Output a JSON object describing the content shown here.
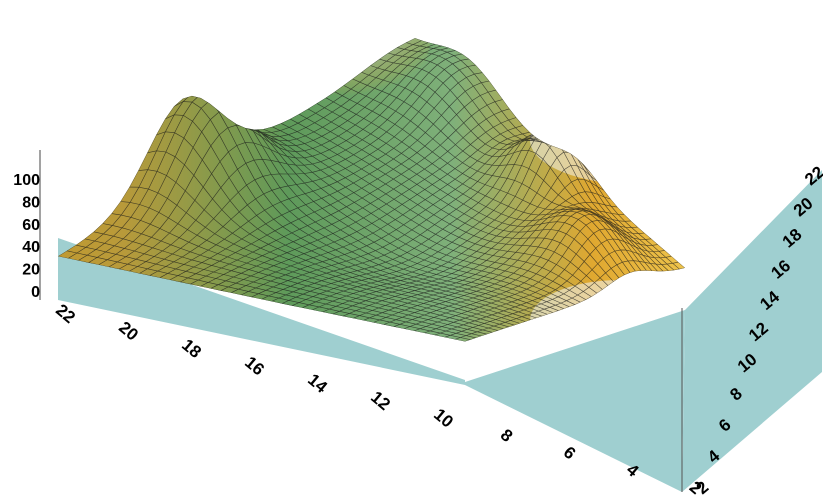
{
  "chart_data": {
    "type": "surface",
    "title": "",
    "xlabel": "",
    "ylabel": "",
    "zlabel": "",
    "x_ticks": [
      "2",
      "4",
      "6",
      "8",
      "10",
      "12",
      "14",
      "16",
      "18",
      "20",
      "22"
    ],
    "y_ticks": [
      "2",
      "4",
      "6",
      "8",
      "10",
      "12",
      "14",
      "16",
      "18",
      "20",
      "22"
    ],
    "z_ticks": [
      "0",
      "20",
      "40",
      "60",
      "80",
      "100"
    ],
    "xlim": [
      2,
      22
    ],
    "ylim": [
      2,
      22
    ],
    "zlim": [
      0,
      100
    ],
    "grid": "mesh",
    "colormap": [
      "#2e7f9a",
      "#6fb0c0",
      "#e8ece8",
      "#d9b23a",
      "#8fb58a",
      "#3f8a4f"
    ],
    "wall_color": "#9fcfd0",
    "peaks": [
      {
        "x": 2,
        "y": 22,
        "z": 96
      },
      {
        "x": 6,
        "y": 12,
        "z": 66
      },
      {
        "x": 21,
        "y": 21,
        "z": 58
      },
      {
        "x": 22,
        "y": 5,
        "z": 52
      }
    ],
    "trough": {
      "x": 12,
      "y": 12,
      "z": 20
    }
  }
}
